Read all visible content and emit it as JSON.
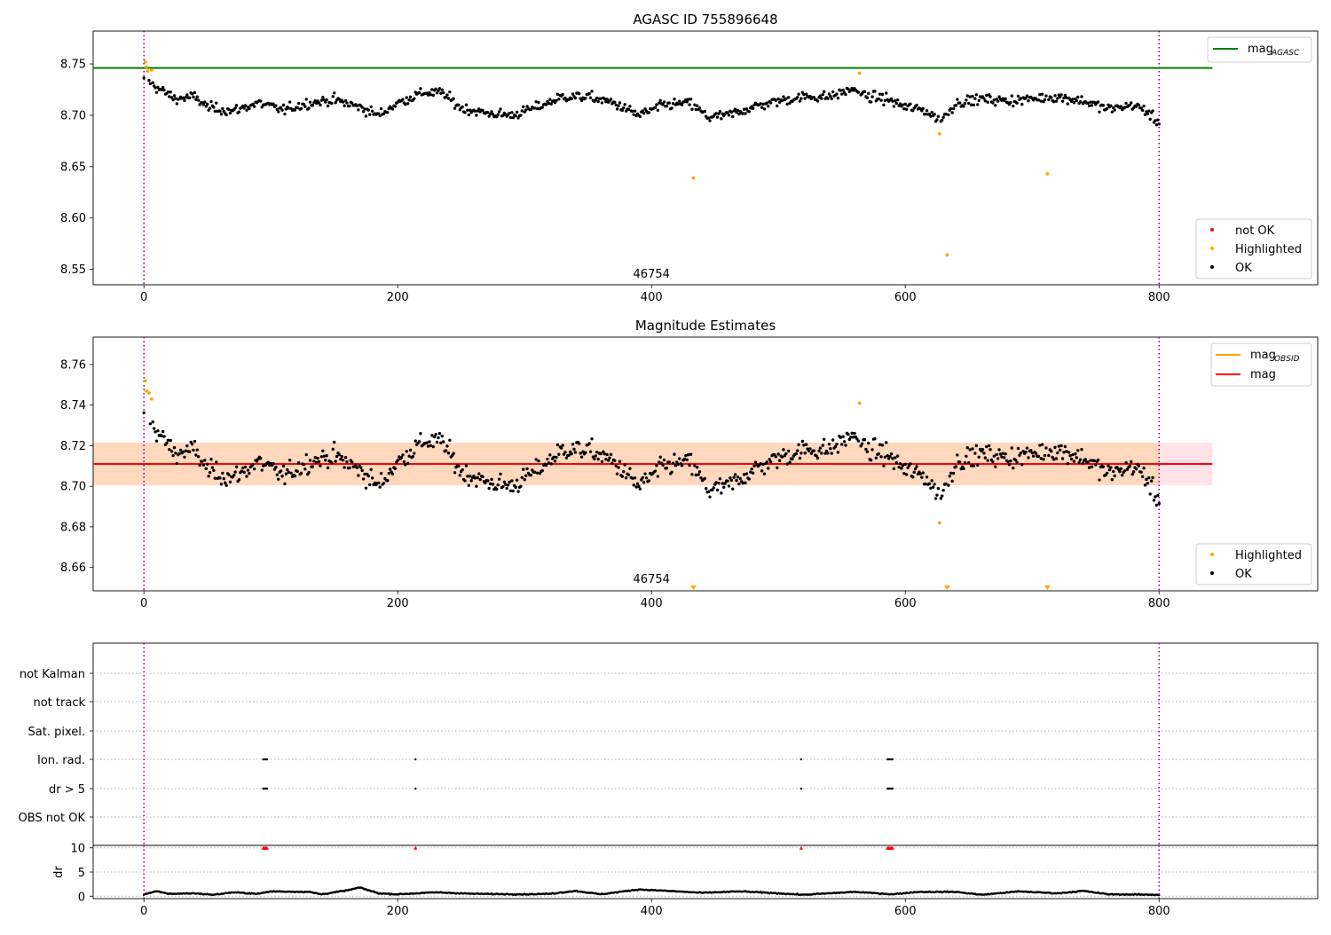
{
  "chart_data": [
    {
      "type": "scatter",
      "title": "AGASC ID 755896648",
      "xlim": [
        -40,
        925
      ],
      "ylim": [
        8.535,
        8.782
      ],
      "x_ticks": [
        0,
        200,
        400,
        600,
        800
      ],
      "x_tick_labels": [
        "0",
        "200",
        "400",
        "600",
        "800"
      ],
      "y_ticks": [
        8.55,
        8.6,
        8.65,
        8.7,
        8.75
      ],
      "y_tick_labels": [
        "8.55",
        "8.60",
        "8.65",
        "8.70",
        "8.75"
      ],
      "obsid_label": "46754",
      "obsid_boundaries": [
        0,
        800
      ],
      "lines": [
        {
          "name": "mag",
          "subscript": "AGASC",
          "y": 8.746,
          "x_range": [
            -40,
            842
          ],
          "color": "#008000"
        }
      ],
      "highlighted_points": [
        {
          "x": 1,
          "y": 8.752
        },
        {
          "x": 2,
          "y": 8.747
        },
        {
          "x": 3,
          "y": 8.743
        },
        {
          "x": 6,
          "y": 8.744
        },
        {
          "x": 433,
          "y": 8.639
        },
        {
          "x": 564,
          "y": 8.741
        },
        {
          "x": 627,
          "y": 8.682
        },
        {
          "x": 633,
          "y": 8.564
        },
        {
          "x": 712,
          "y": 8.643
        }
      ],
      "ok_series": {
        "x_start": 0,
        "x_step": 1,
        "baseline": [
          [
            0,
            8.733
          ],
          [
            5,
            8.733
          ],
          [
            10,
            8.727
          ],
          [
            25,
            8.716
          ],
          [
            40,
            8.718
          ],
          [
            50,
            8.708
          ],
          [
            70,
            8.704
          ],
          [
            90,
            8.712
          ],
          [
            110,
            8.705
          ],
          [
            130,
            8.712
          ],
          [
            150,
            8.715
          ],
          [
            170,
            8.708
          ],
          [
            185,
            8.7
          ],
          [
            200,
            8.712
          ],
          [
            220,
            8.722
          ],
          [
            235,
            8.722
          ],
          [
            250,
            8.707
          ],
          [
            270,
            8.702
          ],
          [
            290,
            8.7
          ],
          [
            310,
            8.708
          ],
          [
            330,
            8.718
          ],
          [
            350,
            8.718
          ],
          [
            370,
            8.712
          ],
          [
            390,
            8.7
          ],
          [
            410,
            8.71
          ],
          [
            430,
            8.712
          ],
          [
            445,
            8.698
          ],
          [
            460,
            8.7
          ],
          [
            480,
            8.708
          ],
          [
            500,
            8.714
          ],
          [
            520,
            8.718
          ],
          [
            540,
            8.718
          ],
          [
            560,
            8.726
          ],
          [
            570,
            8.718
          ],
          [
            585,
            8.716
          ],
          [
            600,
            8.708
          ],
          [
            615,
            8.705
          ],
          [
            628,
            8.695
          ],
          [
            640,
            8.712
          ],
          [
            660,
            8.716
          ],
          [
            680,
            8.714
          ],
          [
            700,
            8.716
          ],
          [
            720,
            8.718
          ],
          [
            740,
            8.714
          ],
          [
            760,
            8.706
          ],
          [
            780,
            8.71
          ],
          [
            790,
            8.704
          ],
          [
            800,
            8.692
          ]
        ],
        "noise": 0.0075
      },
      "legend_lines": [
        {
          "label": "mag",
          "subscript": "AGASC",
          "color": "#008000"
        }
      ],
      "legend_points": [
        {
          "label": "not OK",
          "color": "#ff0000"
        },
        {
          "label": "Highlighted",
          "color": "#ffa500"
        },
        {
          "label": "OK",
          "color": "#000000"
        }
      ],
      "legend_lines_placement": "top-right",
      "legend_points_placement": "bottom-right"
    },
    {
      "type": "scatter",
      "title": "Magnitude Estimates",
      "xlim": [
        -40,
        925
      ],
      "ylim": [
        8.6485,
        8.7735
      ],
      "x_ticks": [
        0,
        200,
        400,
        600,
        800
      ],
      "x_tick_labels": [
        "0",
        "200",
        "400",
        "600",
        "800"
      ],
      "y_ticks": [
        8.66,
        8.68,
        8.7,
        8.72,
        8.74,
        8.76
      ],
      "y_tick_labels": [
        "8.66",
        "8.68",
        "8.70",
        "8.72",
        "8.74",
        "8.76"
      ],
      "obsid_label": "46754",
      "obsid_boundaries": [
        0,
        800
      ],
      "bands": [
        {
          "x_range": [
            -40,
            842
          ],
          "y_range": [
            8.7005,
            8.7215
          ],
          "color": "#ffc0cb",
          "opacity": 0.45
        },
        {
          "x_range": [
            -40,
            800
          ],
          "y_range": [
            8.7005,
            8.7215
          ],
          "color": "#ffa500",
          "opacity": 0.18
        }
      ],
      "lines": [
        {
          "name": "mag",
          "subscript": "OBSID",
          "y": 8.711,
          "x_range": [
            0,
            800
          ],
          "color": "#ffa500"
        },
        {
          "name": "mag",
          "y": 8.711,
          "x_range": [
            -40,
            842
          ],
          "color": "#ff0000"
        }
      ],
      "highlighted_points": [
        {
          "x": 1,
          "y": 8.752
        },
        {
          "x": 2,
          "y": 8.747
        },
        {
          "x": 4,
          "y": 8.746
        },
        {
          "x": 6,
          "y": 8.743
        },
        {
          "x": 564,
          "y": 8.741
        },
        {
          "x": 627,
          "y": 8.682
        }
      ],
      "out_of_range_markers": [
        433,
        633,
        712
      ],
      "ok_series_ref": 0,
      "legend_lines": [
        {
          "label": "mag",
          "subscript": "OBSID",
          "color": "#ffa500"
        },
        {
          "label": "mag",
          "subscript": "",
          "color": "#ff0000"
        }
      ],
      "legend_points": [
        {
          "label": "Highlighted",
          "color": "#ffa500"
        },
        {
          "label": "OK",
          "color": "#000000"
        }
      ],
      "legend_lines_placement": "top-right",
      "legend_points_placement": "bottom-right"
    },
    {
      "type": "scatter",
      "xlim": [
        -40,
        925
      ],
      "categories": [
        "not Kalman",
        "not track",
        "Sat. pixel.",
        "Ion. rad.",
        "dr > 5",
        "OBS not OK"
      ],
      "flag_points": {
        "Ion. rad.": [
          94,
          95,
          96,
          97,
          214,
          518,
          586,
          587,
          588,
          589,
          590
        ],
        "dr > 5": [
          94,
          95,
          96,
          97,
          214,
          518,
          586,
          587,
          588,
          589,
          590
        ]
      },
      "obsid_boundaries": [
        0,
        800
      ]
    },
    {
      "type": "scatter",
      "xlim": [
        -40,
        925
      ],
      "ylim": [
        -0.5,
        10.5
      ],
      "ylabel": "dr",
      "x_ticks": [
        0,
        200,
        400,
        600,
        800
      ],
      "x_tick_labels": [
        "0",
        "200",
        "400",
        "600",
        "800"
      ],
      "y_ticks": [
        0,
        5,
        10
      ],
      "y_tick_labels": [
        "0",
        "5",
        "10"
      ],
      "clipped_markers": [
        94,
        95,
        96,
        97,
        214,
        518,
        586,
        587,
        588,
        589,
        590
      ],
      "dr_segments": [
        [
          0,
          0.4
        ],
        [
          10,
          1.0
        ],
        [
          20,
          0.5
        ],
        [
          40,
          0.6
        ],
        [
          55,
          0.3
        ],
        [
          70,
          0.8
        ],
        [
          90,
          0.5
        ],
        [
          100,
          1.0
        ],
        [
          130,
          0.9
        ],
        [
          140,
          0.4
        ],
        [
          160,
          1.2
        ],
        [
          170,
          1.8
        ],
        [
          185,
          0.6
        ],
        [
          200,
          0.4
        ],
        [
          230,
          0.8
        ],
        [
          260,
          0.5
        ],
        [
          300,
          0.4
        ],
        [
          320,
          0.5
        ],
        [
          340,
          1.1
        ],
        [
          360,
          0.4
        ],
        [
          390,
          1.4
        ],
        [
          420,
          1.0
        ],
        [
          440,
          0.7
        ],
        [
          470,
          1.0
        ],
        [
          500,
          0.6
        ],
        [
          520,
          0.3
        ],
        [
          560,
          0.9
        ],
        [
          590,
          0.4
        ],
        [
          610,
          0.9
        ],
        [
          640,
          0.9
        ],
        [
          660,
          0.3
        ],
        [
          690,
          1.0
        ],
        [
          720,
          0.6
        ],
        [
          740,
          1.1
        ],
        [
          760,
          0.4
        ],
        [
          800,
          0.3
        ]
      ],
      "obsid_boundaries": [
        0,
        800
      ]
    }
  ]
}
